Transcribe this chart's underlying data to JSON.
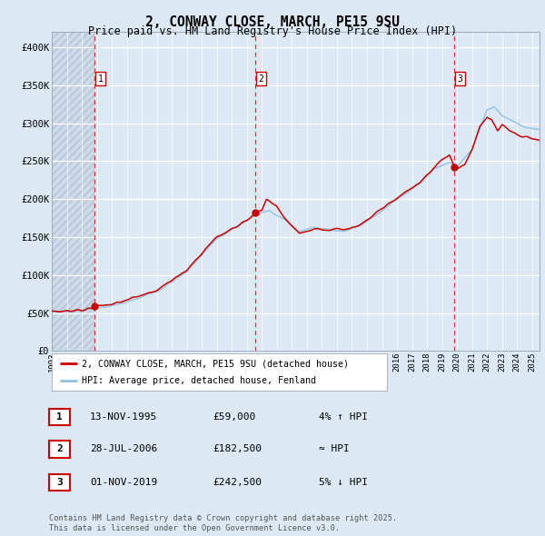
{
  "title_line1": "2, CONWAY CLOSE, MARCH, PE15 9SU",
  "title_line2": "Price paid vs. HM Land Registry's House Price Index (HPI)",
  "sale_dates_float": [
    1995.868,
    2006.573,
    2019.833
  ],
  "sale_prices": [
    59000,
    182500,
    242500
  ],
  "sale_labels": [
    "1",
    "2",
    "3"
  ],
  "sale_annotations": [
    "13-NOV-1995",
    "28-JUL-2006",
    "01-NOV-2019"
  ],
  "sale_prices_str": [
    "£59,000",
    "£182,500",
    "£242,500"
  ],
  "sale_relation": [
    "4% ↑ HPI",
    "≈ HPI",
    "5% ↓ HPI"
  ],
  "hpi_color": "#90c0e0",
  "price_color": "#cc0000",
  "dashed_color": "#dd3333",
  "background_color": "#dce9f5",
  "plot_bg_color": "#dce9f5",
  "ylim": [
    0,
    420000
  ],
  "yticks": [
    0,
    50000,
    100000,
    150000,
    200000,
    250000,
    300000,
    350000,
    400000
  ],
  "ytick_labels": [
    "£0",
    "£50K",
    "£100K",
    "£150K",
    "£200K",
    "£250K",
    "£300K",
    "£350K",
    "£400K"
  ],
  "xstart": 1993.0,
  "xend": 2025.5,
  "legend_line1": "2, CONWAY CLOSE, MARCH, PE15 9SU (detached house)",
  "legend_line2": "HPI: Average price, detached house, Fenland",
  "footer_line1": "Contains HM Land Registry data © Crown copyright and database right 2025.",
  "footer_line2": "This data is licensed under the Open Government Licence v3.0."
}
